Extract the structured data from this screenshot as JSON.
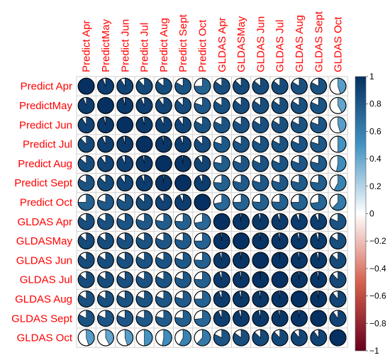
{
  "chart_data": {
    "type": "heatmap",
    "style": "pie",
    "variables": [
      "Predict Apr",
      "PredictMay",
      "Predict Jun",
      "Predict Jul",
      "Predict Aug",
      "Predict Sept",
      "Predict Oct",
      "GLDAS Apr",
      "GLDASMay",
      "GLDAS Jun",
      "GLDAS Jul",
      "GLDAS Aug",
      "GLDAS Sept",
      "GLDAS Oct"
    ],
    "matrix": [
      [
        1.0,
        0.94,
        0.91,
        0.88,
        0.86,
        0.83,
        0.75,
        0.85,
        0.87,
        0.86,
        0.86,
        0.84,
        0.83,
        0.45
      ],
      [
        0.94,
        1.0,
        0.96,
        0.93,
        0.9,
        0.87,
        0.8,
        0.84,
        0.86,
        0.85,
        0.85,
        0.84,
        0.82,
        0.42
      ],
      [
        0.91,
        0.96,
        1.0,
        0.96,
        0.93,
        0.9,
        0.83,
        0.82,
        0.84,
        0.84,
        0.84,
        0.83,
        0.81,
        0.45
      ],
      [
        0.88,
        0.93,
        0.96,
        1.0,
        0.97,
        0.94,
        0.87,
        0.8,
        0.83,
        0.83,
        0.83,
        0.82,
        0.8,
        0.5
      ],
      [
        0.86,
        0.9,
        0.93,
        0.97,
        1.0,
        0.98,
        0.9,
        0.78,
        0.81,
        0.82,
        0.82,
        0.81,
        0.79,
        0.53
      ],
      [
        0.83,
        0.87,
        0.9,
        0.94,
        0.98,
        1.0,
        0.93,
        0.76,
        0.79,
        0.8,
        0.8,
        0.79,
        0.77,
        0.58
      ],
      [
        0.75,
        0.8,
        0.83,
        0.87,
        0.9,
        0.93,
        1.0,
        0.72,
        0.75,
        0.76,
        0.76,
        0.75,
        0.73,
        0.62
      ],
      [
        0.85,
        0.84,
        0.82,
        0.8,
        0.78,
        0.76,
        0.72,
        1.0,
        0.98,
        0.96,
        0.95,
        0.94,
        0.93,
        0.82
      ],
      [
        0.87,
        0.86,
        0.84,
        0.83,
        0.81,
        0.79,
        0.75,
        0.98,
        1.0,
        0.98,
        0.97,
        0.96,
        0.95,
        0.85
      ],
      [
        0.86,
        0.85,
        0.84,
        0.83,
        0.82,
        0.8,
        0.76,
        0.96,
        0.98,
        1.0,
        0.99,
        0.97,
        0.96,
        0.87
      ],
      [
        0.86,
        0.85,
        0.84,
        0.83,
        0.82,
        0.8,
        0.76,
        0.95,
        0.97,
        0.99,
        1.0,
        0.98,
        0.97,
        0.88
      ],
      [
        0.84,
        0.84,
        0.83,
        0.82,
        0.81,
        0.79,
        0.75,
        0.94,
        0.96,
        0.97,
        0.98,
        1.0,
        0.98,
        0.89
      ],
      [
        0.83,
        0.82,
        0.81,
        0.8,
        0.79,
        0.77,
        0.73,
        0.93,
        0.95,
        0.96,
        0.97,
        0.98,
        1.0,
        0.9
      ],
      [
        0.45,
        0.42,
        0.45,
        0.5,
        0.53,
        0.58,
        0.62,
        0.82,
        0.85,
        0.87,
        0.88,
        0.89,
        0.9,
        1.0
      ]
    ],
    "colorbar": {
      "ticks": [
        "1",
        "0.8",
        "0.6",
        "0.4",
        "0.2",
        "0",
        "−0.2",
        "−0.4",
        "−0.6",
        "−0.8",
        "−1"
      ],
      "range": [
        -1,
        1
      ],
      "colors": {
        "negative_end": "#67001f",
        "negative_mid": "#d6604d",
        "neutral": "#ffffff",
        "positive_mid": "#4393c3",
        "positive_end": "#053061"
      }
    },
    "label_color": "#ff0000"
  }
}
